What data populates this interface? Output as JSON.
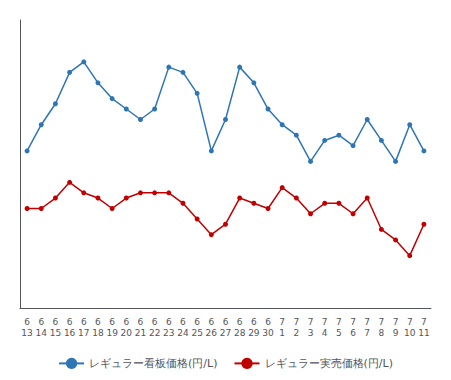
{
  "chart_data": {
    "type": "line",
    "categories": [
      "6\n13",
      "6\n14",
      "6\n15",
      "6\n16",
      "6\n17",
      "6\n18",
      "6\n19",
      "6\n20",
      "6\n21",
      "6\n22",
      "6\n23",
      "6\n24",
      "6\n25",
      "6\n26",
      "6\n27",
      "6\n28",
      "6\n29",
      "6\n30",
      "7\n1",
      "7\n2",
      "7\n3",
      "7\n4",
      "7\n5",
      "7\n6",
      "7\n7",
      "7\n8",
      "7\n9",
      "7\n10",
      "7\n11"
    ],
    "series": [
      {
        "name": "レギュラー看板価格(円/L)",
        "color": "#2e75b6",
        "marker": "circle",
        "line_style": "solid",
        "values": [
          135,
          140,
          144,
          150,
          152,
          148,
          145,
          143,
          141,
          143,
          151,
          150,
          146,
          135,
          141,
          151,
          148,
          143,
          140,
          138,
          133,
          137,
          138,
          136,
          141,
          137,
          133,
          140,
          135
        ]
      },
      {
        "name": "レギュラー実売価格(円/L)",
        "color": "#c00000",
        "marker": "circle",
        "line_style": "solid",
        "values": [
          124,
          124,
          126,
          129,
          127,
          126,
          124,
          126,
          127,
          127,
          127,
          125,
          122,
          119,
          121,
          126,
          125,
          124,
          128,
          126,
          123,
          125,
          125,
          123,
          126,
          120,
          118,
          115,
          121
        ]
      }
    ],
    "ylim": [
      105,
      160
    ],
    "grid": false,
    "legend": "bottom",
    "tick_labels": "x"
  }
}
